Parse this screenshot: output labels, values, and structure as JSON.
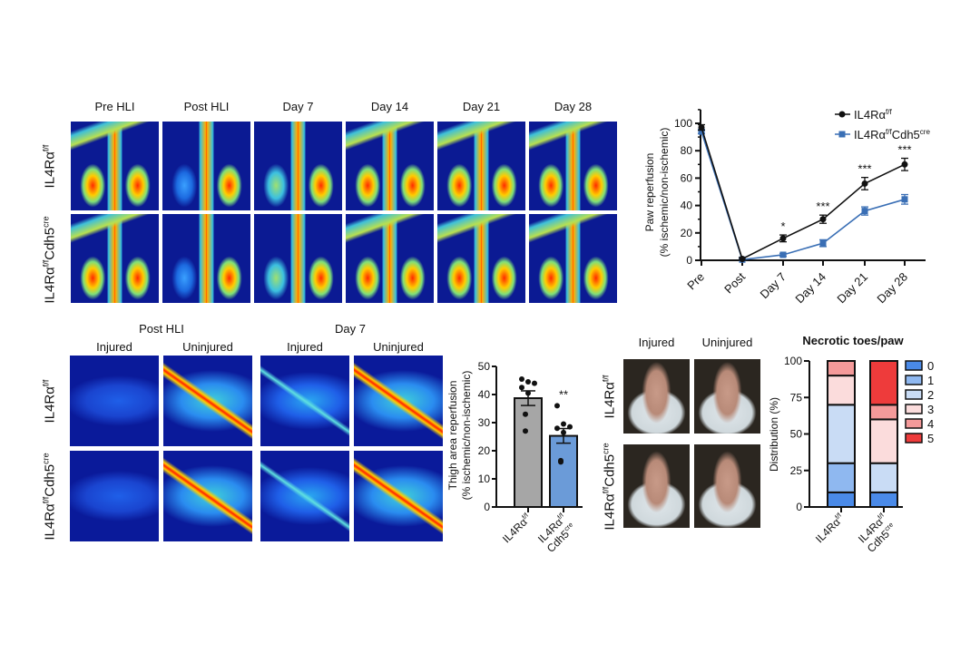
{
  "top_panel": {
    "columns": [
      "Pre HLI",
      "Post HLI",
      "Day 7",
      "Day 14",
      "Day 21",
      "Day 28"
    ],
    "rows": [
      {
        "base": "IL4Rα",
        "sup": "f/f",
        "base2": "",
        "sup2": ""
      },
      {
        "base": "IL4Rα",
        "sup": "f/f",
        "base2": "Cdh5",
        "sup2": "cre"
      }
    ]
  },
  "thigh_panel": {
    "groups": [
      "Post HLI",
      "Day 7"
    ],
    "columns": [
      "Injured",
      "Uninjured",
      "Injured",
      "Uninjured"
    ],
    "rows": [
      {
        "base": "IL4Rα",
        "sup": "f/f",
        "base2": "",
        "sup2": ""
      },
      {
        "base": "IL4Rα",
        "sup": "f/f",
        "base2": "Cdh5",
        "sup2": "cre"
      }
    ]
  },
  "photo_panel": {
    "columns": [
      "Injured",
      "Uninjured"
    ],
    "rows": [
      {
        "base": "IL4Rα",
        "sup": "f/f",
        "base2": "",
        "sup2": ""
      },
      {
        "base": "IL4Rα",
        "sup": "f/f",
        "base2": "Cdh5",
        "sup2": "cre"
      }
    ]
  },
  "chart_data": [
    {
      "type": "line",
      "ylabel": [
        "Paw reperfusion",
        "(% ischemic/non-ischemic)"
      ],
      "categories": [
        "Pre",
        "Post",
        "Day 7",
        "Day 14",
        "Day 21",
        "Day 28"
      ],
      "ylim": [
        0,
        110
      ],
      "yticks": [
        0,
        20,
        40,
        60,
        80,
        100
      ],
      "series": [
        {
          "name": {
            "base": "IL4Rα",
            "sup": "f/f",
            "base2": "",
            "sup2": ""
          },
          "color": "#111111",
          "marker": "circle",
          "values": [
            97,
            1,
            16,
            30,
            56,
            70
          ],
          "error": [
            2,
            1,
            2.5,
            3,
            4.5,
            4.5
          ]
        },
        {
          "name": {
            "base": "IL4Rα",
            "sup": "f/f",
            "base2": "Cdh5",
            "sup2": "cre"
          },
          "color": "#3a6fb5",
          "marker": "square",
          "values": [
            94,
            0.5,
            4,
            12.5,
            36,
            44.5
          ],
          "error": [
            1.5,
            0.5,
            1,
            2.5,
            3,
            3.5
          ]
        }
      ],
      "significance": [
        "",
        "",
        "*",
        "***",
        "***",
        "***"
      ],
      "legend": "top-right"
    },
    {
      "type": "bar",
      "ylabel": [
        "Thigh area reperfusion",
        "(% ischemic/non-ischemic)"
      ],
      "categories": [
        {
          "base": "IL4Rα",
          "sup": "f/f",
          "base2": "",
          "sup2": ""
        },
        {
          "base": "IL4Rα",
          "sup": "f/f",
          "base2": "Cdh5",
          "sup2": "cre"
        }
      ],
      "values": [
        38.7,
        25.3
      ],
      "error": [
        2.6,
        2.6
      ],
      "points": [
        [
          45.5,
          44.5,
          44,
          42.5,
          40.5,
          33,
          27
        ],
        [
          36,
          29.5,
          28.5,
          28,
          26.5,
          16.5,
          16
        ]
      ],
      "colors": [
        "#a6a6a6",
        "#6b9bd8"
      ],
      "significance": [
        "",
        "**"
      ],
      "ylim": [
        0,
        50
      ],
      "yticks": [
        0,
        10,
        20,
        30,
        40,
        50
      ]
    },
    {
      "type": "bar",
      "stacked": true,
      "title": "Necrotic toes/paw",
      "ylabel": "Distribution (%)",
      "categories": [
        {
          "base": "IL4Rα",
          "sup": "f/f",
          "base2": "",
          "sup2": ""
        },
        {
          "base": "IL4Rα",
          "sup": "f/f",
          "base2": "Cdh5",
          "sup2": "cre"
        }
      ],
      "series": [
        {
          "name": "0",
          "color": "#4a8ae8",
          "values": [
            10,
            10
          ]
        },
        {
          "name": "1",
          "color": "#8fb8f0",
          "values": [
            20,
            0
          ]
        },
        {
          "name": "2",
          "color": "#c9dcf5",
          "values": [
            40,
            20
          ]
        },
        {
          "name": "3",
          "color": "#fbdcdc",
          "values": [
            20,
            30
          ]
        },
        {
          "name": "4",
          "color": "#f49a9a",
          "values": [
            10,
            10
          ]
        },
        {
          "name": "5",
          "color": "#ee3b3b",
          "values": [
            0,
            30
          ]
        }
      ],
      "ylim": [
        0,
        100
      ],
      "yticks": [
        0,
        25,
        50,
        75,
        100
      ],
      "legend": "right"
    }
  ]
}
